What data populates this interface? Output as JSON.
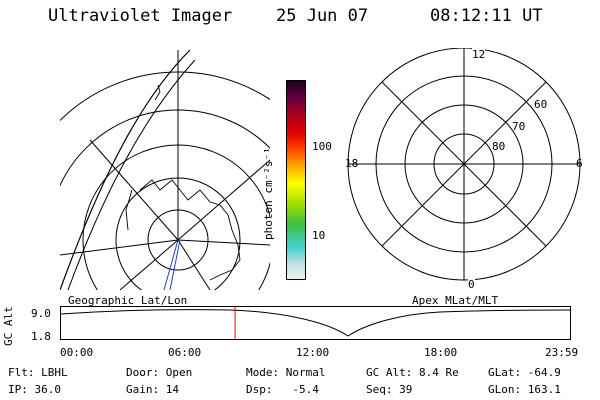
{
  "header": {
    "instrument": "Ultraviolet Imager",
    "date": "25 Jun 07",
    "time": "08:12:11 UT"
  },
  "colorbar": {
    "unit_label": "photon cm⁻²s⁻¹",
    "ticks": [
      "100",
      "10"
    ]
  },
  "apex_plot": {
    "mlt_labels": [
      "12",
      "18",
      "6",
      "0"
    ],
    "lat_labels": [
      "60",
      "70",
      "80"
    ]
  },
  "timeline": {
    "left_label": "Geographic Lat/Lon",
    "right_label": "Apex  MLat/MLT",
    "axis_title": "GC Alt",
    "y_ticks": [
      "9.0",
      "1.8"
    ],
    "x_ticks": [
      "00:00",
      "06:00",
      "12:00",
      "18:00",
      "23:59"
    ],
    "marker_time_fraction": 0.342,
    "marker_color": "#e00000"
  },
  "info": {
    "row1": {
      "filter": "Flt: LBHL",
      "door": "Door: Open",
      "mode": "Mode: Normal",
      "gc_alt": "GC Alt: 8.4 Re",
      "glat": "GLat: -64.9"
    },
    "row2": {
      "ip": "IP: 36.0",
      "gain": "Gain: 14",
      "dsp": "Dsp:   -5.4",
      "seq": "Seq: 39",
      "glon": "GLon: 163.1"
    }
  },
  "colors": {
    "colorbar_stops": [
      "#e8f0f0",
      "#c0e0e0",
      "#40d0d0",
      "#40c040",
      "#a0e000",
      "#ffff00",
      "#ffa000",
      "#ff4000",
      "#e00000",
      "#a00020",
      "#600040",
      "#200020"
    ],
    "track_color": "#2040c0"
  }
}
